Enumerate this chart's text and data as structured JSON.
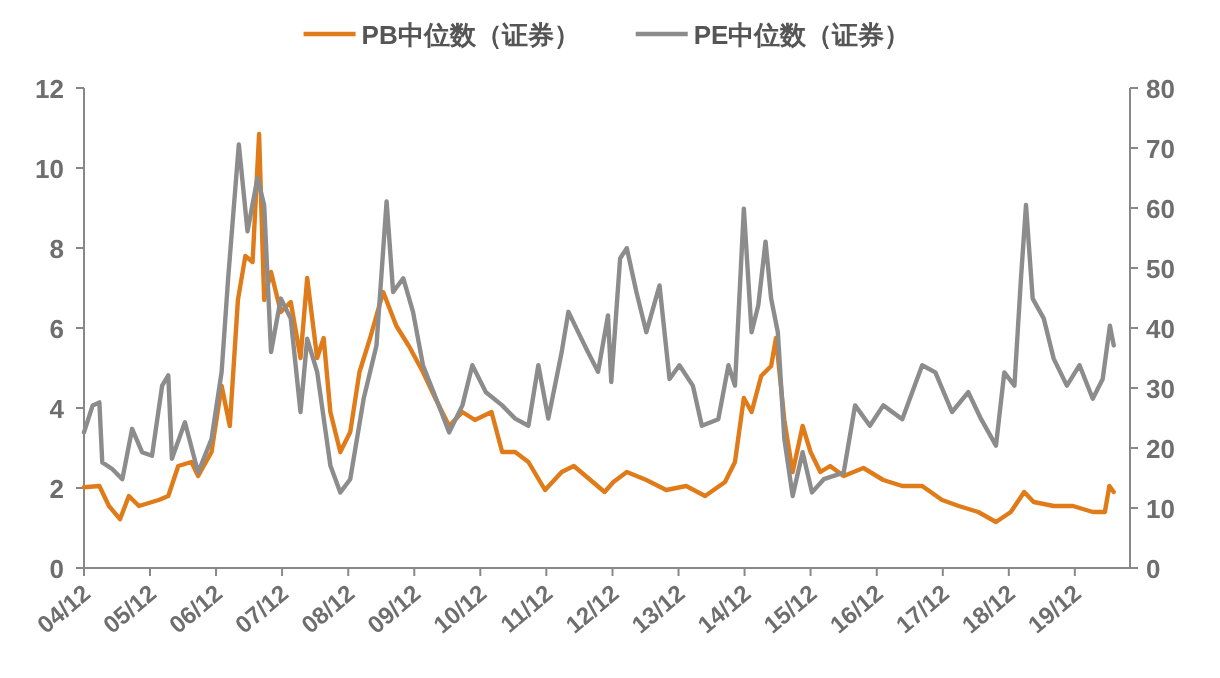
{
  "chart_data": {
    "type": "line",
    "legend": "top",
    "xlim": [
      "2004-12",
      "2020-10"
    ],
    "xticks": [
      {
        "value": "2004-12",
        "label": "04/12"
      },
      {
        "value": "2005-12",
        "label": "05/12"
      },
      {
        "value": "2006-12",
        "label": "06/12"
      },
      {
        "value": "2007-12",
        "label": "07/12"
      },
      {
        "value": "2008-12",
        "label": "08/12"
      },
      {
        "value": "2009-12",
        "label": "09/12"
      },
      {
        "value": "2010-12",
        "label": "10/12"
      },
      {
        "value": "2011-12",
        "label": "11/12"
      },
      {
        "value": "2012-12",
        "label": "12/12"
      },
      {
        "value": "2013-12",
        "label": "13/12"
      },
      {
        "value": "2014-12",
        "label": "14/12"
      },
      {
        "value": "2015-12",
        "label": "15/12"
      },
      {
        "value": "2016-12",
        "label": "16/12"
      },
      {
        "value": "2017-12",
        "label": "17/12"
      },
      {
        "value": "2018-12",
        "label": "18/12"
      },
      {
        "value": "2019-12",
        "label": "19/12"
      }
    ],
    "ylim": [
      0,
      12
    ],
    "yticks": [
      0,
      2,
      4,
      6,
      8,
      10,
      12
    ],
    "y2lim": [
      0,
      80
    ],
    "y2ticks": [
      0,
      10,
      20,
      30,
      40,
      50,
      60,
      70,
      80
    ],
    "series": [
      {
        "name": "PB中位数（证券）",
        "color": "#e07b1a",
        "axis": "y",
        "x": [
          "2004-12-01",
          "2005-02-24",
          "2005-04-18",
          "2005-06-18",
          "2005-08-06",
          "2005-10-01",
          "2006-01-18",
          "2006-03-12",
          "2006-05-06",
          "2006-07-18",
          "2006-08-24",
          "2006-11-06",
          "2007-01-01",
          "2007-02-15",
          "2007-04-01",
          "2007-05-12",
          "2007-06-21",
          "2007-07-27",
          "2007-08-24",
          "2007-10-01",
          "2007-11-24",
          "2008-01-18",
          "2008-03-12",
          "2008-04-18",
          "2008-06-12",
          "2008-07-18",
          "2008-08-24",
          "2008-10-18",
          "2008-12-12",
          "2009-02-01",
          "2009-04-01",
          "2009-06-12",
          "2009-08-24",
          "2009-11-01",
          "2010-01-18",
          "2010-04-01",
          "2010-06-12",
          "2010-08-24",
          "2010-11-01",
          "2011-02-01",
          "2011-04-01",
          "2011-06-12",
          "2011-08-24",
          "2011-11-24",
          "2012-02-24",
          "2012-05-01",
          "2012-08-01",
          "2012-10-18",
          "2012-12-06",
          "2013-02-18",
          "2013-06-06",
          "2013-09-24",
          "2014-01-12",
          "2014-04-27",
          "2014-08-15",
          "2014-10-09",
          "2014-11-27",
          "2015-01-09",
          "2015-03-03",
          "2015-04-27",
          "2015-05-24",
          "2015-07-09",
          "2015-08-24",
          "2015-10-18",
          "2015-12-01",
          "2016-01-24",
          "2016-03-18",
          "2016-06-01",
          "2016-09-18",
          "2017-01-06",
          "2017-04-21",
          "2017-08-09",
          "2017-11-27",
          "2018-02-27",
          "2018-06-15",
          "2018-09-21",
          "2018-12-12",
          "2019-02-24",
          "2019-04-18",
          "2019-08-06",
          "2019-11-21",
          "2020-03-09",
          "2020-05-15",
          "2020-06-09",
          "2020-07-03"
        ],
        "values": [
          2.02,
          2.05,
          1.55,
          1.22,
          1.8,
          1.55,
          1.7,
          1.8,
          2.55,
          2.65,
          2.3,
          2.9,
          4.55,
          3.55,
          6.7,
          7.8,
          7.65,
          10.85,
          6.7,
          7.4,
          6.4,
          6.65,
          5.25,
          7.25,
          5.25,
          5.75,
          3.9,
          2.9,
          3.4,
          4.9,
          5.75,
          6.9,
          6.05,
          5.55,
          4.9,
          4.2,
          3.55,
          3.9,
          3.7,
          3.9,
          2.9,
          2.9,
          2.65,
          1.95,
          2.4,
          2.55,
          2.2,
          1.9,
          2.15,
          2.4,
          2.2,
          1.95,
          2.05,
          1.8,
          2.15,
          2.65,
          4.25,
          3.9,
          4.8,
          5.05,
          5.75,
          3.7,
          2.4,
          3.55,
          2.9,
          2.4,
          2.55,
          2.3,
          2.5,
          2.2,
          2.05,
          2.05,
          1.7,
          1.55,
          1.4,
          1.15,
          1.4,
          1.9,
          1.65,
          1.55,
          1.55,
          1.4,
          1.4,
          2.05,
          1.9
        ]
      },
      {
        "name": "PE中位数（证券）",
        "color": "#8c8c8c",
        "axis": "y2",
        "x": [
          "2004-12-01",
          "2005-01-18",
          "2005-02-24",
          "2005-03-12",
          "2005-05-06",
          "2005-07-01",
          "2005-08-24",
          "2005-10-18",
          "2005-12-12",
          "2006-02-06",
          "2006-03-12",
          "2006-04-01",
          "2006-06-12",
          "2006-08-24",
          "2006-11-06",
          "2007-01-01",
          "2007-02-06",
          "2007-04-06",
          "2007-05-24",
          "2007-07-18",
          "2007-08-24",
          "2007-10-01",
          "2007-11-24",
          "2008-01-18",
          "2008-03-12",
          "2008-04-18",
          "2008-06-12",
          "2008-08-24",
          "2008-10-18",
          "2008-12-12",
          "2009-02-24",
          "2009-05-06",
          "2009-07-01",
          "2009-08-06",
          "2009-10-01",
          "2009-11-24",
          "2010-01-18",
          "2010-04-01",
          "2010-06-12",
          "2010-08-24",
          "2010-10-18",
          "2011-01-01",
          "2011-04-01",
          "2011-06-12",
          "2011-08-24",
          "2011-10-18",
          "2011-12-12",
          "2012-02-24",
          "2012-04-01",
          "2012-05-24",
          "2012-07-18",
          "2012-09-12",
          "2012-11-06",
          "2012-11-24",
          "2013-01-12",
          "2013-02-18",
          "2013-04-12",
          "2013-06-06",
          "2013-08-18",
          "2013-10-12",
          "2013-12-06",
          "2014-02-18",
          "2014-04-09",
          "2014-07-09",
          "2014-09-03",
          "2014-10-09",
          "2014-11-27",
          "2015-01-09",
          "2015-02-15",
          "2015-03-27",
          "2015-04-27",
          "2015-06-03",
          "2015-07-09",
          "2015-08-24",
          "2015-10-18",
          "2015-12-09",
          "2016-02-12",
          "2016-06-01",
          "2016-08-03",
          "2016-10-24",
          "2017-01-06",
          "2017-04-21",
          "2017-08-09",
          "2017-10-21",
          "2018-01-21",
          "2018-04-21",
          "2018-07-01",
          "2018-09-21",
          "2018-11-06",
          "2019-01-01",
          "2019-02-06",
          "2019-03-06",
          "2019-04-12",
          "2019-06-12",
          "2019-08-06",
          "2019-10-18",
          "2019-12-27",
          "2020-03-09",
          "2020-05-03",
          "2020-06-12",
          "2020-07-03"
        ],
        "values": [
          22.6,
          27.1,
          27.6,
          17.6,
          16.5,
          14.8,
          23.2,
          19.3,
          18.7,
          30.4,
          32.1,
          18.2,
          24.3,
          15.9,
          21.5,
          32.7,
          48.3,
          70.6,
          56.1,
          65,
          60.5,
          36,
          44.9,
          41.6,
          26,
          38.2,
          32.7,
          17.1,
          12.6,
          14.8,
          28.2,
          37.1,
          61.1,
          46,
          48.3,
          42.7,
          33.8,
          28.2,
          22.6,
          27.1,
          33.8,
          29.3,
          27.1,
          24.9,
          23.7,
          33.8,
          24.9,
          36,
          42.7,
          39.4,
          36,
          32.7,
          42.1,
          31,
          51.6,
          53.3,
          46,
          39.3,
          47.1,
          31.5,
          33.8,
          30.4,
          23.7,
          24.8,
          33.8,
          30.4,
          59.9,
          39.3,
          43.8,
          54.4,
          44.9,
          39.3,
          21.5,
          12,
          19.3,
          12.6,
          14.8,
          15.9,
          27.1,
          23.7,
          27.1,
          24.8,
          33.8,
          32.6,
          26,
          29.3,
          24.8,
          20.4,
          32.6,
          30.4,
          48.2,
          60.5,
          44.9,
          41.6,
          34.9,
          30.4,
          33.8,
          28.2,
          31.5,
          40.4,
          37.1
        ]
      }
    ]
  }
}
